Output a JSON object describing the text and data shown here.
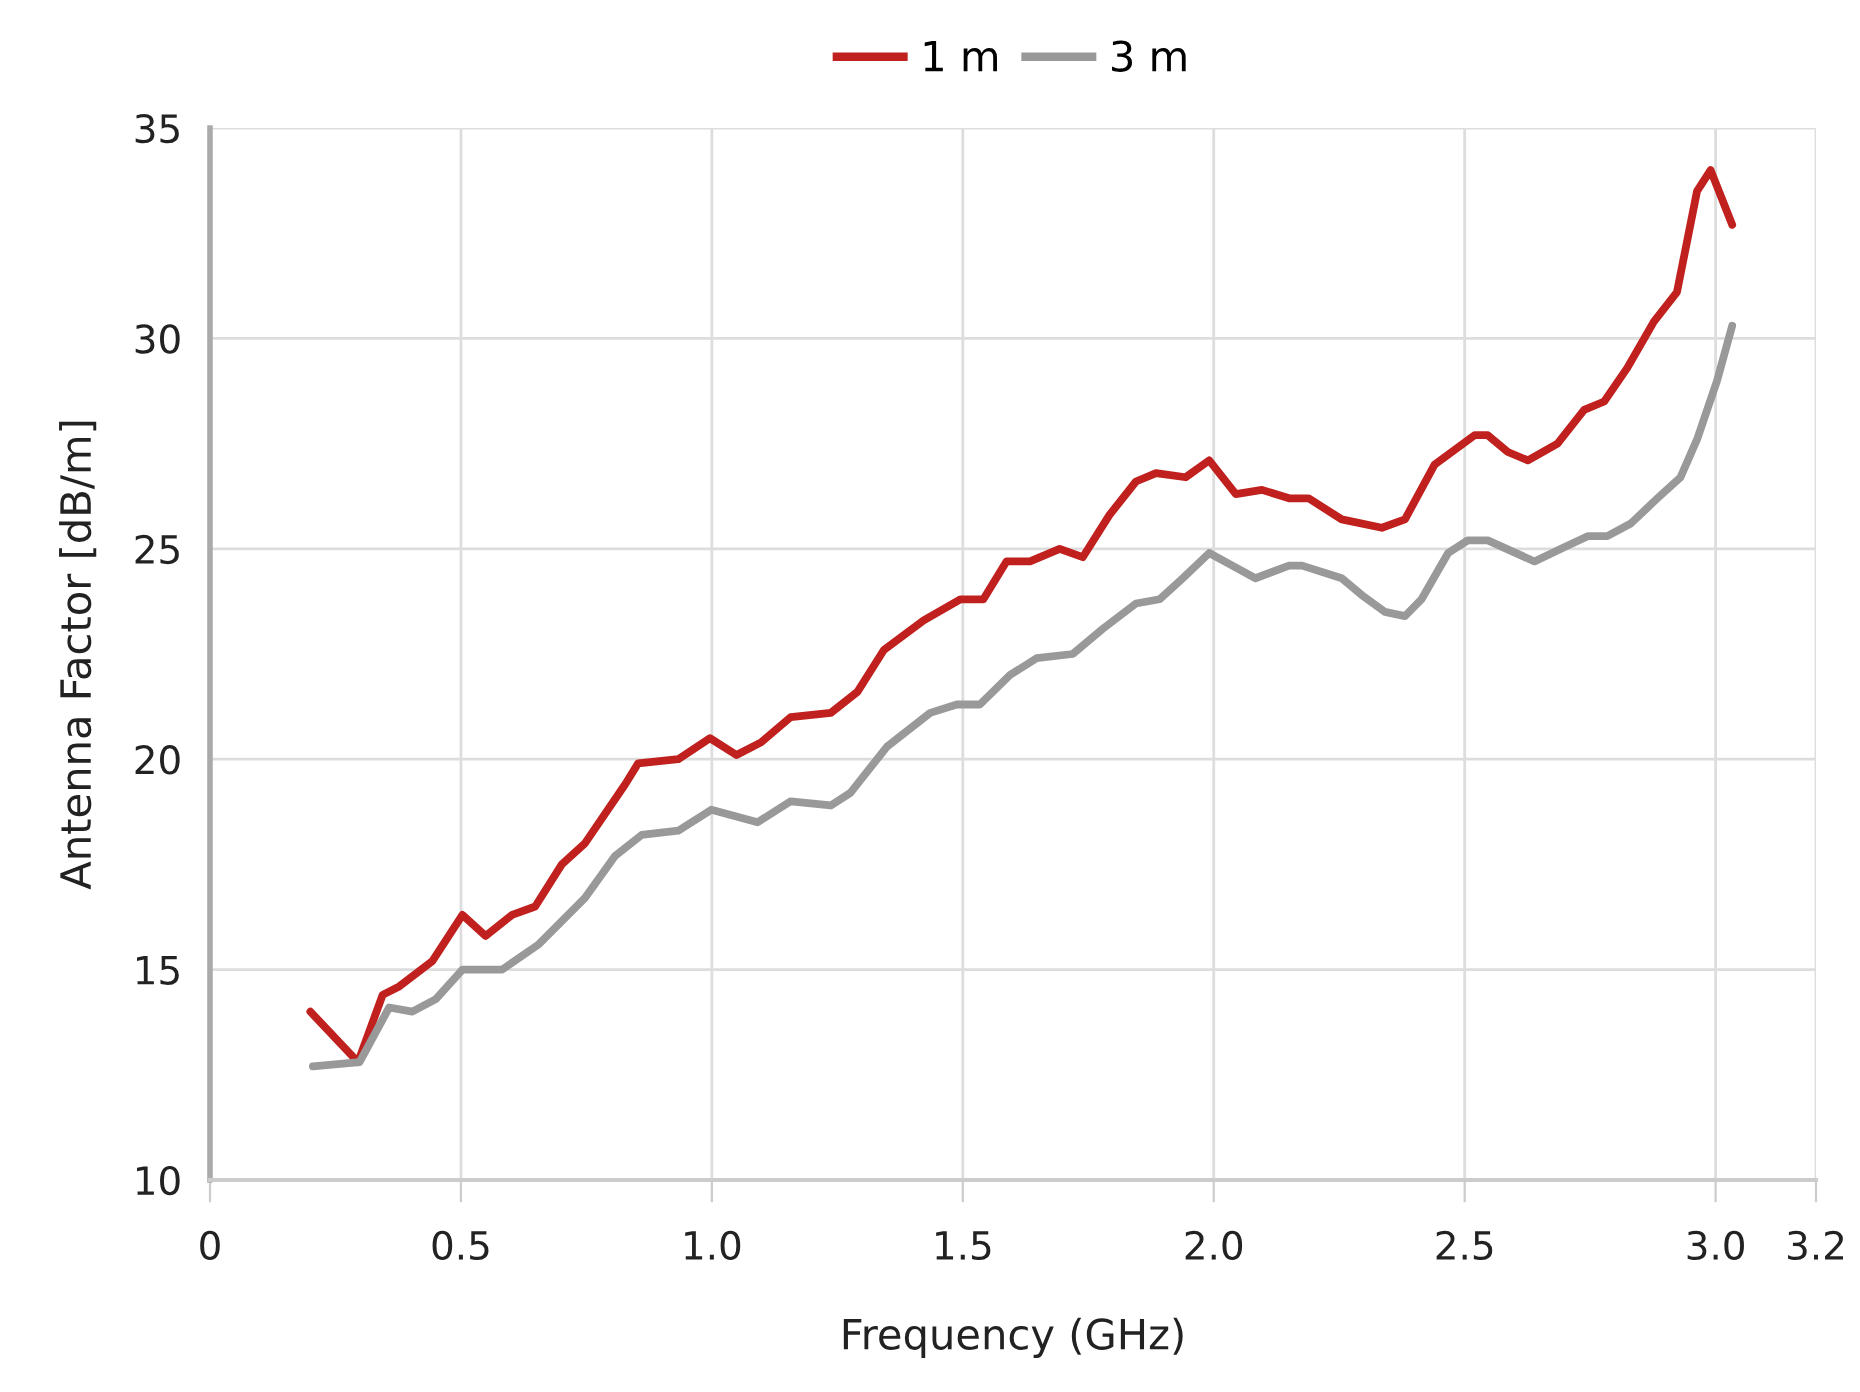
{
  "chart_data": {
    "type": "line",
    "xlabel": "Frequency (GHz)",
    "ylabel": "Antenna Factor [dB/m]",
    "xlim": [
      0,
      3.2
    ],
    "xticks": [
      0,
      0.5,
      {
        "value": 1.0,
        "label": "1.0"
      },
      1.5,
      {
        "value": 2.0,
        "label": "2.0"
      },
      2.5,
      {
        "value": 3.0,
        "label": "3.0"
      },
      3.2
    ],
    "ylim": [
      10,
      35
    ],
    "yticks": [
      10,
      15,
      20,
      25,
      30,
      35
    ],
    "grid": true,
    "legend": "top",
    "marker": "none",
    "line_style": "solid",
    "series": [
      {
        "name": "1 m",
        "color": "#c0201e",
        "x": [
          0.2,
          0.295,
          0.344,
          0.377,
          0.443,
          0.503,
          0.549,
          0.602,
          0.648,
          0.701,
          0.747,
          0.827,
          0.853,
          0.933,
          0.996,
          1.049,
          1.098,
          1.157,
          1.237,
          1.29,
          1.343,
          1.422,
          1.495,
          1.541,
          1.587,
          1.634,
          1.693,
          1.739,
          1.792,
          1.845,
          1.885,
          1.944,
          1.991,
          2.044,
          2.096,
          2.15,
          2.189,
          2.255,
          2.335,
          2.381,
          2.44,
          2.52,
          2.546,
          2.586,
          2.626,
          2.685,
          2.738,
          2.778,
          2.824,
          2.877,
          2.923,
          2.963,
          2.99,
          3.033
        ],
        "values": [
          14.0,
          12.8,
          14.4,
          14.6,
          15.2,
          16.3,
          15.8,
          16.3,
          16.5,
          17.5,
          18.0,
          19.4,
          19.9,
          20.0,
          20.5,
          20.1,
          20.4,
          21.0,
          21.1,
          21.6,
          22.6,
          23.3,
          23.8,
          23.8,
          24.7,
          24.7,
          25.0,
          24.8,
          25.8,
          26.6,
          26.8,
          26.7,
          27.1,
          26.3,
          26.4,
          26.2,
          26.2,
          25.7,
          25.5,
          25.7,
          27.0,
          27.7,
          27.7,
          27.3,
          27.1,
          27.5,
          28.3,
          28.5,
          29.3,
          30.4,
          31.1,
          33.5,
          34.0,
          32.7
        ]
      },
      {
        "name": "3 m",
        "color": "#999999",
        "x": [
          0.205,
          0.298,
          0.357,
          0.403,
          0.45,
          0.503,
          0.582,
          0.655,
          0.747,
          0.807,
          0.86,
          0.933,
          0.999,
          1.091,
          1.157,
          1.237,
          1.276,
          1.349,
          1.435,
          1.488,
          1.534,
          1.594,
          1.647,
          1.719,
          1.779,
          1.845,
          1.892,
          1.938,
          1.991,
          2.037,
          2.083,
          2.15,
          2.176,
          2.255,
          2.295,
          2.341,
          2.381,
          2.414,
          2.467,
          2.506,
          2.546,
          2.639,
          2.692,
          2.745,
          2.784,
          2.831,
          2.884,
          2.93,
          2.963,
          3.003,
          3.033
        ],
        "values": [
          12.7,
          12.8,
          14.1,
          14.0,
          14.3,
          15.0,
          15.0,
          15.6,
          16.7,
          17.7,
          18.2,
          18.3,
          18.8,
          18.5,
          19.0,
          18.9,
          19.2,
          20.3,
          21.1,
          21.3,
          21.3,
          22.0,
          22.4,
          22.5,
          23.1,
          23.7,
          23.8,
          24.3,
          24.9,
          24.6,
          24.3,
          24.6,
          24.6,
          24.3,
          23.9,
          23.5,
          23.4,
          23.8,
          24.9,
          25.2,
          25.2,
          24.7,
          25.0,
          25.3,
          25.3,
          25.6,
          26.2,
          26.7,
          27.6,
          29.0,
          30.3
        ]
      }
    ]
  }
}
